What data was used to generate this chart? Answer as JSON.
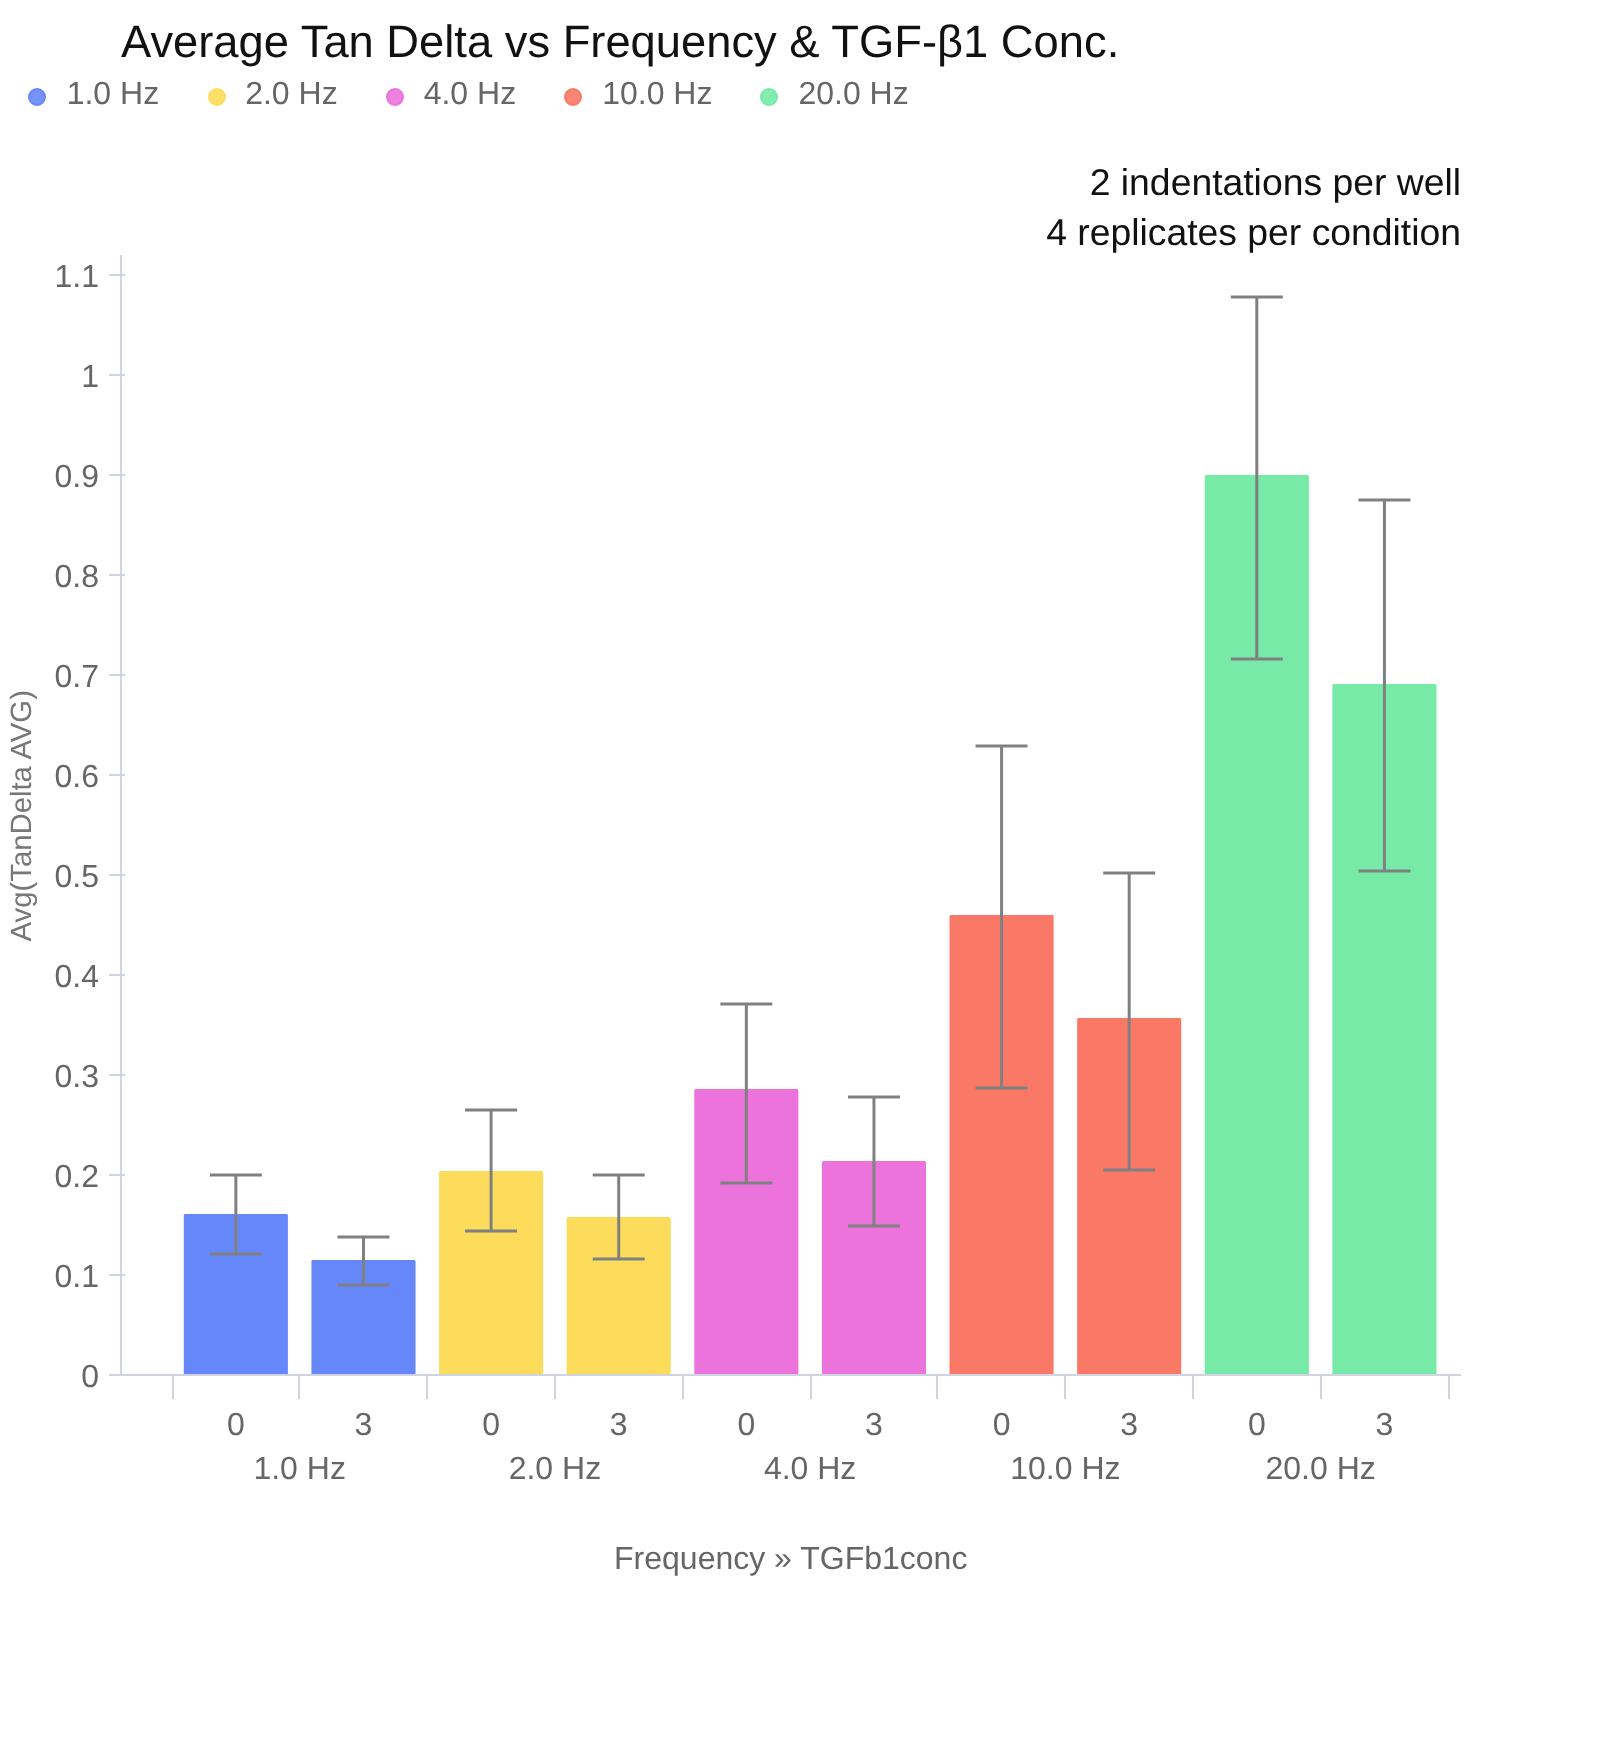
{
  "chart_data": {
    "type": "bar",
    "title": "Average Tan Delta vs Frequency & TGF-β1 Conc.",
    "xlabel": "Frequency » TGFb1conc",
    "ylabel": "Avg(TanDelta AVG)",
    "annotations": [
      "2 indentations per well",
      "4 replicates per condition"
    ],
    "categories": [
      "0",
      "3",
      "0",
      "3",
      "0",
      "3",
      "0",
      "3",
      "0",
      "3"
    ],
    "series": [
      {
        "name": "1.0 Hz",
        "color": "#6687fa",
        "values": [
          0.16,
          0.114,
          null,
          null,
          null,
          null,
          null,
          null,
          null,
          null
        ],
        "errors": [
          [
            0.121,
            0.2
          ],
          [
            0.09,
            0.138
          ],
          null,
          null,
          null,
          null,
          null,
          null,
          null,
          null
        ]
      },
      {
        "name": "2.0 Hz",
        "color": "#fddc5c",
        "values": [
          null,
          null,
          0.203,
          0.157,
          null,
          null,
          null,
          null,
          null,
          null
        ],
        "errors": [
          null,
          null,
          [
            0.144,
            0.265
          ],
          [
            0.116,
            0.2
          ],
          null,
          null,
          null,
          null,
          null,
          null
        ]
      },
      {
        "name": "4.0 Hz",
        "color": "#ec72dc",
        "values": [
          null,
          null,
          null,
          null,
          0.285,
          0.213,
          null,
          null,
          null,
          null
        ],
        "errors": [
          null,
          null,
          null,
          null,
          [
            0.192,
            0.371
          ],
          [
            0.149,
            0.278
          ],
          null,
          null,
          null,
          null
        ]
      },
      {
        "name": "10.0 Hz",
        "color": "#fa7866",
        "values": [
          null,
          null,
          null,
          null,
          null,
          null,
          0.459,
          0.356,
          null,
          null
        ],
        "errors": [
          null,
          null,
          null,
          null,
          null,
          null,
          [
            0.287,
            0.629
          ],
          [
            0.205,
            0.502
          ],
          null,
          null
        ]
      },
      {
        "name": "20.0 Hz",
        "color": "#76eaa6",
        "values": [
          null,
          null,
          null,
          null,
          null,
          null,
          null,
          null,
          0.899,
          0.69
        ],
        "errors": [
          null,
          null,
          null,
          null,
          null,
          null,
          null,
          null,
          [
            0.716,
            1.078
          ],
          [
            0.504,
            0.875
          ]
        ]
      }
    ],
    "ylim": [
      0,
      1.12
    ],
    "yticks": [
      0,
      0.1,
      0.2,
      0.3,
      0.4,
      0.5,
      0.6,
      0.7,
      0.8,
      0.9,
      {
        "value": 1,
        "label": "1"
      },
      1.1
    ],
    "grid": false,
    "legend": "top left"
  }
}
